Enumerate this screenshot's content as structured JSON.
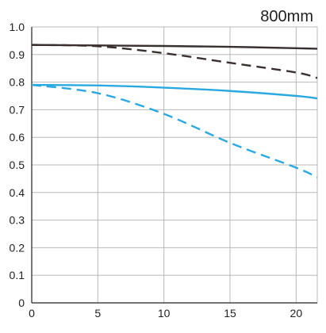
{
  "chart_data": {
    "type": "line",
    "title": "800mm",
    "xlabel": "",
    "ylabel": "",
    "xlim": [
      0,
      21.6
    ],
    "ylim": [
      0,
      1.0
    ],
    "x_ticks": [
      0,
      5,
      10,
      15,
      20
    ],
    "x_tick_labels": [
      "0",
      "5",
      "10",
      "15",
      "20"
    ],
    "y_ticks": [
      0,
      0.1,
      0.2,
      0.3,
      0.4,
      0.5,
      0.6,
      0.7,
      0.8,
      0.9,
      1.0
    ],
    "y_tick_labels": [
      "0",
      "0.1",
      "0.2",
      "0.3",
      "0.4",
      "0.5",
      "0.6",
      "0.7",
      "0.8",
      "0.9",
      "1.0"
    ],
    "grid": true,
    "series": [
      {
        "color": "#3a3030",
        "dash": "solid",
        "x": [
          0,
          5,
          10,
          15,
          20,
          21.6
        ],
        "y": [
          0.935,
          0.933,
          0.931,
          0.928,
          0.923,
          0.921
        ]
      },
      {
        "color": "#3a3030",
        "dash": "dashed",
        "x": [
          0,
          5,
          10,
          15,
          20,
          21.6
        ],
        "y": [
          0.935,
          0.93,
          0.905,
          0.87,
          0.835,
          0.815
        ]
      },
      {
        "color": "#2aa8e0",
        "dash": "solid",
        "x": [
          0,
          5,
          10,
          15,
          20,
          21.6
        ],
        "y": [
          0.79,
          0.788,
          0.78,
          0.768,
          0.75,
          0.741
        ]
      },
      {
        "color": "#2aa8e0",
        "dash": "dashed",
        "x": [
          0,
          5,
          10,
          15,
          20,
          21.6
        ],
        "y": [
          0.79,
          0.76,
          0.685,
          0.58,
          0.49,
          0.455
        ]
      }
    ],
    "grid_color": "#b8b8b8",
    "axis_color": "#222222"
  }
}
